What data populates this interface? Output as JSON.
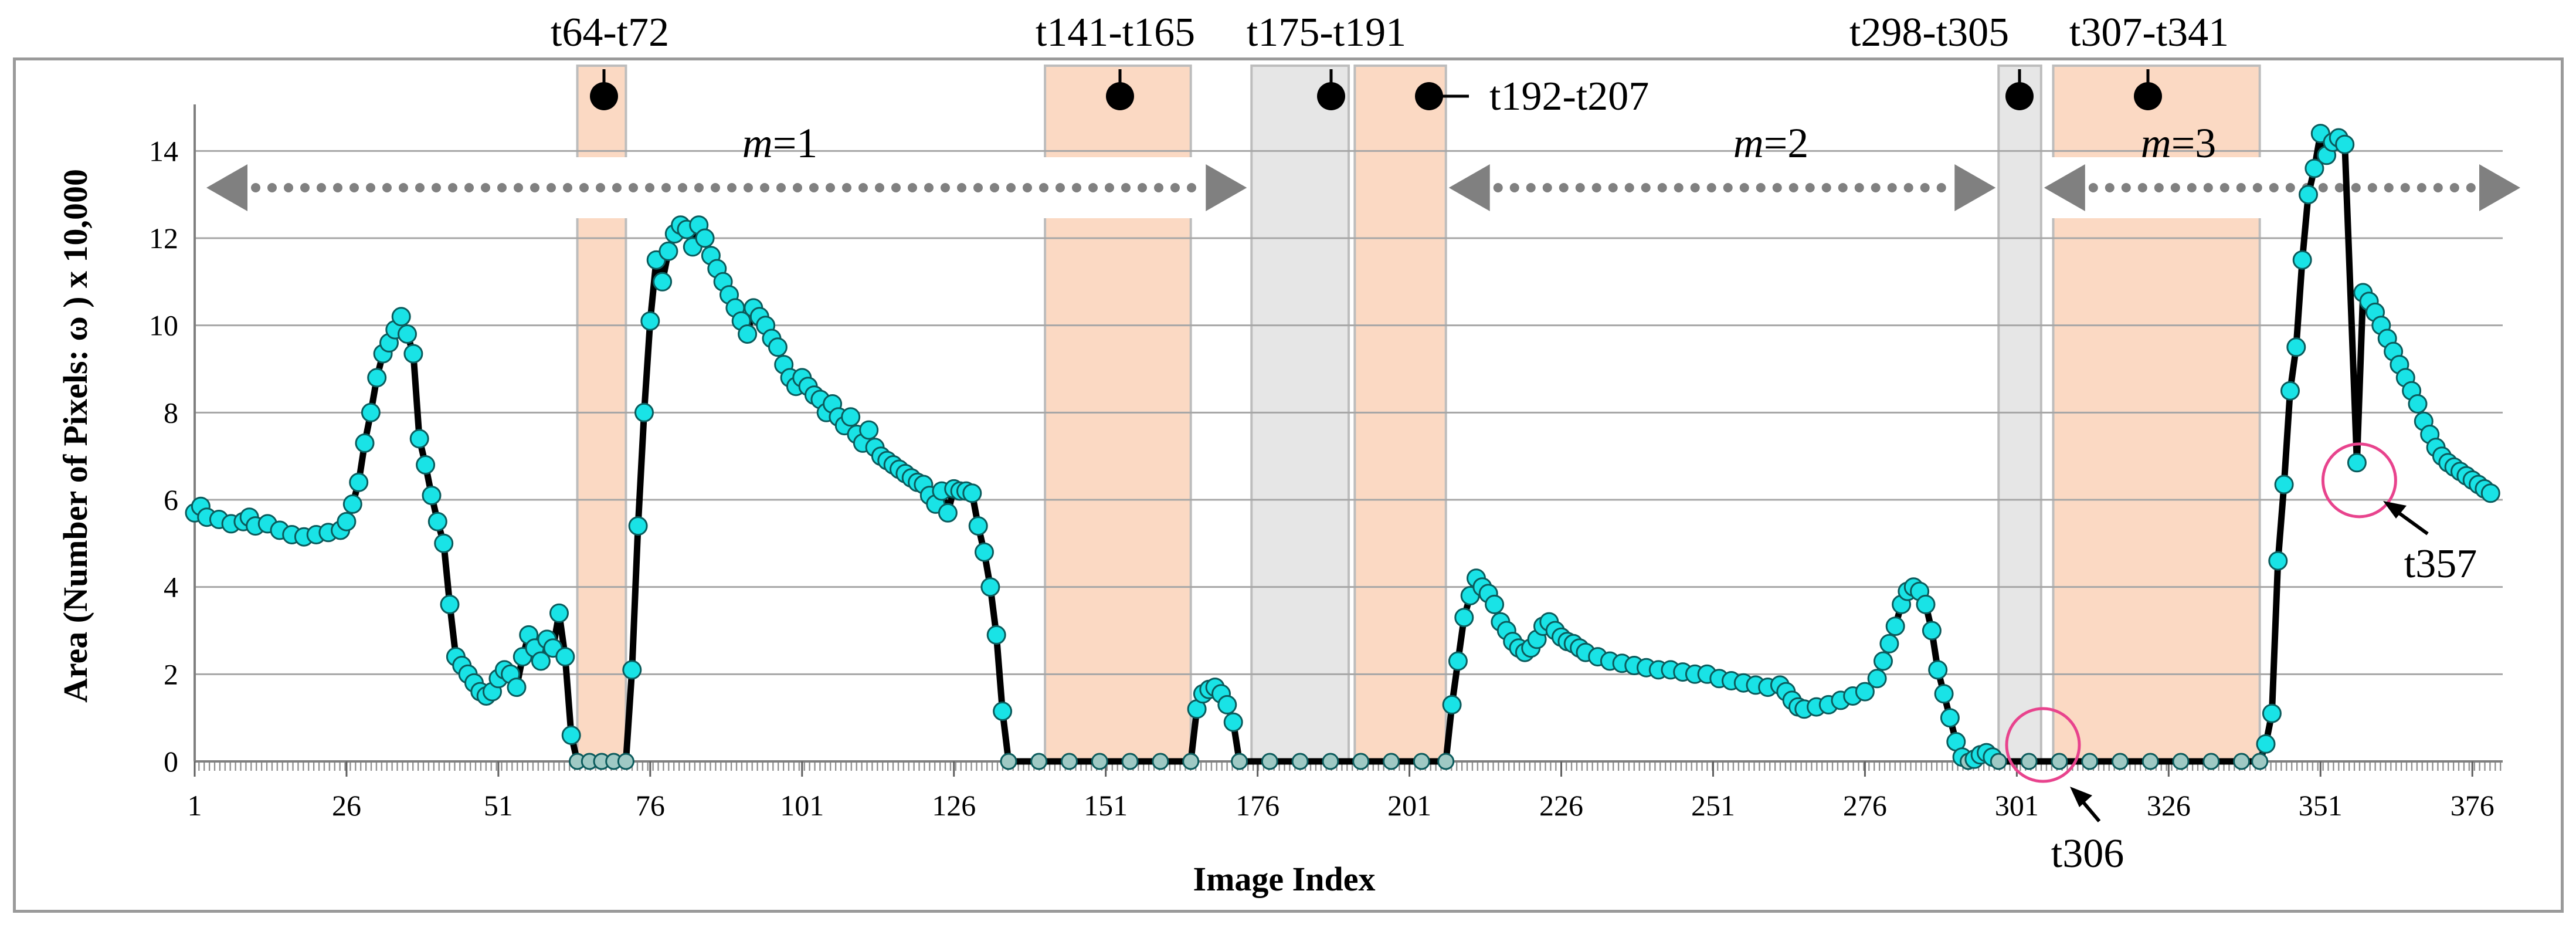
{
  "chart_data": {
    "type": "line",
    "xlabel": "Image Index",
    "ylabel": "Area (Number of  Pixels: ω  ) x 10,000",
    "xlim": [
      1,
      381
    ],
    "ylim": [
      0,
      15
    ],
    "x_ticks": [
      "1",
      "26",
      "51",
      "76",
      "101",
      "126",
      "151",
      "176",
      "201",
      "226",
      "251",
      "276",
      "301",
      "326",
      "351",
      "376"
    ],
    "y_ticks": [
      "0",
      "2",
      "4",
      "6",
      "8",
      "10",
      "12",
      "14"
    ],
    "grid": true,
    "colors": {
      "line": "#000000",
      "marker_fill": "#19e3e6",
      "marker_stroke": "#0b5b5c",
      "zero_marker_fill": "#9fc9c4",
      "orange_band": "#fbd9c3",
      "gray_band": "#e6e6e6",
      "band_border": "#bdbdbd",
      "arrow": "#808080",
      "highlight_circle": "#e8438d"
    },
    "points": [
      [
        1,
        5.7
      ],
      [
        2,
        5.85
      ],
      [
        3,
        5.6
      ],
      [
        5,
        5.55
      ],
      [
        7,
        5.45
      ],
      [
        9,
        5.5
      ],
      [
        10,
        5.6
      ],
      [
        11,
        5.4
      ],
      [
        13,
        5.45
      ],
      [
        15,
        5.3
      ],
      [
        17,
        5.2
      ],
      [
        19,
        5.15
      ],
      [
        21,
        5.2
      ],
      [
        23,
        5.25
      ],
      [
        25,
        5.3
      ],
      [
        26,
        5.5
      ],
      [
        27,
        5.9
      ],
      [
        28,
        6.4
      ],
      [
        29,
        7.3
      ],
      [
        30,
        8.0
      ],
      [
        31,
        8.8
      ],
      [
        32,
        9.35
      ],
      [
        33,
        9.6
      ],
      [
        34,
        9.9
      ],
      [
        35,
        10.2
      ],
      [
        36,
        9.8
      ],
      [
        37,
        9.35
      ],
      [
        38,
        7.4
      ],
      [
        39,
        6.8
      ],
      [
        40,
        6.1
      ],
      [
        41,
        5.5
      ],
      [
        42,
        5.0
      ],
      [
        43,
        3.6
      ],
      [
        44,
        2.4
      ],
      [
        45,
        2.2
      ],
      [
        46,
        2.0
      ],
      [
        47,
        1.8
      ],
      [
        48,
        1.6
      ],
      [
        49,
        1.5
      ],
      [
        50,
        1.6
      ],
      [
        51,
        1.9
      ],
      [
        52,
        2.1
      ],
      [
        53,
        2.0
      ],
      [
        54,
        1.7
      ],
      [
        55,
        2.4
      ],
      [
        56,
        2.9
      ],
      [
        57,
        2.6
      ],
      [
        58,
        2.3
      ],
      [
        59,
        2.8
      ],
      [
        60,
        2.6
      ],
      [
        61,
        3.4
      ],
      [
        62,
        2.4
      ],
      [
        63,
        0.6
      ],
      [
        64,
        0
      ],
      [
        66,
        0
      ],
      [
        68,
        0
      ],
      [
        70,
        0
      ],
      [
        72,
        0
      ],
      [
        73,
        2.1
      ],
      [
        74,
        5.4
      ],
      [
        75,
        8.0
      ],
      [
        76,
        10.1
      ],
      [
        77,
        11.5
      ],
      [
        78,
        11.0
      ],
      [
        79,
        11.7
      ],
      [
        80,
        12.1
      ],
      [
        81,
        12.3
      ],
      [
        82,
        12.2
      ],
      [
        83,
        11.8
      ],
      [
        84,
        12.3
      ],
      [
        85,
        12.0
      ],
      [
        86,
        11.6
      ],
      [
        87,
        11.3
      ],
      [
        88,
        11.0
      ],
      [
        89,
        10.7
      ],
      [
        90,
        10.4
      ],
      [
        91,
        10.1
      ],
      [
        92,
        9.8
      ],
      [
        93,
        10.4
      ],
      [
        94,
        10.2
      ],
      [
        95,
        10.0
      ],
      [
        96,
        9.7
      ],
      [
        97,
        9.5
      ],
      [
        98,
        9.1
      ],
      [
        99,
        8.8
      ],
      [
        100,
        8.6
      ],
      [
        101,
        8.8
      ],
      [
        102,
        8.6
      ],
      [
        103,
        8.4
      ],
      [
        104,
        8.3
      ],
      [
        105,
        8.0
      ],
      [
        106,
        8.2
      ],
      [
        107,
        7.9
      ],
      [
        108,
        7.7
      ],
      [
        109,
        7.9
      ],
      [
        110,
        7.5
      ],
      [
        111,
        7.3
      ],
      [
        112,
        7.6
      ],
      [
        113,
        7.2
      ],
      [
        114,
        7.0
      ],
      [
        115,
        6.9
      ],
      [
        116,
        6.8
      ],
      [
        117,
        6.7
      ],
      [
        118,
        6.6
      ],
      [
        119,
        6.5
      ],
      [
        120,
        6.4
      ],
      [
        121,
        6.35
      ],
      [
        122,
        6.1
      ],
      [
        123,
        5.9
      ],
      [
        124,
        6.2
      ],
      [
        125,
        5.7
      ],
      [
        126,
        6.25
      ],
      [
        127,
        6.2
      ],
      [
        128,
        6.2
      ],
      [
        129,
        6.15
      ],
      [
        130,
        5.4
      ],
      [
        131,
        4.8
      ],
      [
        132,
        4.0
      ],
      [
        133,
        2.9
      ],
      [
        134,
        1.15
      ],
      [
        135,
        0
      ],
      [
        140,
        0
      ],
      [
        145,
        0
      ],
      [
        150,
        0
      ],
      [
        155,
        0
      ],
      [
        160,
        0
      ],
      [
        165,
        0
      ],
      [
        166,
        1.2
      ],
      [
        167,
        1.55
      ],
      [
        168,
        1.65
      ],
      [
        169,
        1.7
      ],
      [
        170,
        1.55
      ],
      [
        171,
        1.3
      ],
      [
        172,
        0.9
      ],
      [
        173,
        0
      ],
      [
        178,
        0
      ],
      [
        183,
        0
      ],
      [
        188,
        0
      ],
      [
        193,
        0
      ],
      [
        198,
        0
      ],
      [
        203,
        0
      ],
      [
        207,
        0
      ],
      [
        208,
        1.3
      ],
      [
        209,
        2.3
      ],
      [
        210,
        3.3
      ],
      [
        211,
        3.8
      ],
      [
        212,
        4.2
      ],
      [
        213,
        4.0
      ],
      [
        214,
        3.85
      ],
      [
        215,
        3.6
      ],
      [
        216,
        3.2
      ],
      [
        217,
        3.0
      ],
      [
        218,
        2.75
      ],
      [
        219,
        2.6
      ],
      [
        220,
        2.5
      ],
      [
        221,
        2.6
      ],
      [
        222,
        2.8
      ],
      [
        223,
        3.1
      ],
      [
        224,
        3.2
      ],
      [
        225,
        3.0
      ],
      [
        226,
        2.85
      ],
      [
        227,
        2.75
      ],
      [
        228,
        2.7
      ],
      [
        229,
        2.6
      ],
      [
        230,
        2.5
      ],
      [
        232,
        2.4
      ],
      [
        234,
        2.3
      ],
      [
        236,
        2.25
      ],
      [
        238,
        2.2
      ],
      [
        240,
        2.15
      ],
      [
        242,
        2.1
      ],
      [
        244,
        2.1
      ],
      [
        246,
        2.05
      ],
      [
        248,
        2.0
      ],
      [
        250,
        2.0
      ],
      [
        252,
        1.9
      ],
      [
        254,
        1.85
      ],
      [
        256,
        1.8
      ],
      [
        258,
        1.75
      ],
      [
        260,
        1.7
      ],
      [
        262,
        1.75
      ],
      [
        263,
        1.6
      ],
      [
        264,
        1.4
      ],
      [
        265,
        1.25
      ],
      [
        266,
        1.2
      ],
      [
        268,
        1.25
      ],
      [
        270,
        1.3
      ],
      [
        272,
        1.4
      ],
      [
        274,
        1.5
      ],
      [
        276,
        1.6
      ],
      [
        278,
        1.9
      ],
      [
        279,
        2.3
      ],
      [
        280,
        2.7
      ],
      [
        281,
        3.1
      ],
      [
        282,
        3.6
      ],
      [
        283,
        3.9
      ],
      [
        284,
        4.0
      ],
      [
        285,
        3.9
      ],
      [
        286,
        3.6
      ],
      [
        287,
        3.0
      ],
      [
        288,
        2.1
      ],
      [
        289,
        1.55
      ],
      [
        290,
        1.0
      ],
      [
        291,
        0.45
      ],
      [
        292,
        0.1
      ],
      [
        293,
        0
      ],
      [
        294,
        0.05
      ],
      [
        295,
        0.15
      ],
      [
        296,
        0.2
      ],
      [
        297,
        0.1
      ],
      [
        298,
        0
      ],
      [
        303,
        0
      ],
      [
        308,
        0
      ],
      [
        313,
        0
      ],
      [
        318,
        0
      ],
      [
        323,
        0
      ],
      [
        328,
        0
      ],
      [
        333,
        0
      ],
      [
        338,
        0
      ],
      [
        341,
        0
      ],
      [
        342,
        0.4
      ],
      [
        343,
        1.1
      ],
      [
        344,
        4.6
      ],
      [
        345,
        6.35
      ],
      [
        346,
        8.5
      ],
      [
        347,
        9.5
      ],
      [
        348,
        11.5
      ],
      [
        349,
        13.0
      ],
      [
        350,
        13.6
      ],
      [
        351,
        14.4
      ],
      [
        352,
        13.9
      ],
      [
        353,
        14.2
      ],
      [
        354,
        14.3
      ],
      [
        355,
        14.15
      ],
      [
        357,
        6.85
      ],
      [
        358,
        10.75
      ],
      [
        359,
        10.55
      ],
      [
        360,
        10.3
      ],
      [
        361,
        10.0
      ],
      [
        362,
        9.7
      ],
      [
        363,
        9.4
      ],
      [
        364,
        9.1
      ],
      [
        365,
        8.8
      ],
      [
        366,
        8.5
      ],
      [
        367,
        8.2
      ],
      [
        368,
        7.8
      ],
      [
        369,
        7.5
      ],
      [
        370,
        7.2
      ],
      [
        371,
        7.0
      ],
      [
        372,
        6.85
      ],
      [
        373,
        6.75
      ],
      [
        374,
        6.65
      ],
      [
        375,
        6.55
      ],
      [
        376,
        6.45
      ],
      [
        377,
        6.35
      ],
      [
        378,
        6.25
      ],
      [
        379,
        6.15
      ]
    ],
    "shaded_periods": [
      {
        "label": "t64-t72",
        "start": 64,
        "end": 72,
        "kind": "orange"
      },
      {
        "label": "t141-t165",
        "start": 141,
        "end": 165,
        "kind": "orange"
      },
      {
        "label": "t175-t191",
        "start": 175,
        "end": 191,
        "kind": "gray"
      },
      {
        "label": "t192-t207",
        "start": 192,
        "end": 207,
        "kind": "orange"
      },
      {
        "label": "t298-t305",
        "start": 298,
        "end": 305,
        "kind": "gray"
      },
      {
        "label": "t307-t341",
        "start": 307,
        "end": 341,
        "kind": "orange"
      }
    ],
    "phases": [
      {
        "label_var": "m",
        "label_val": "=1",
        "start": 1,
        "end": 175
      },
      {
        "label_var": "m",
        "label_val": "=2",
        "start": 207,
        "end": 298
      },
      {
        "label_var": "m",
        "label_val": "=3",
        "start": 305,
        "end": 381
      }
    ],
    "callouts": [
      {
        "label": "t306",
        "x": 306,
        "y": 0
      },
      {
        "label": "t357",
        "x": 357,
        "y": 6.85
      }
    ]
  }
}
